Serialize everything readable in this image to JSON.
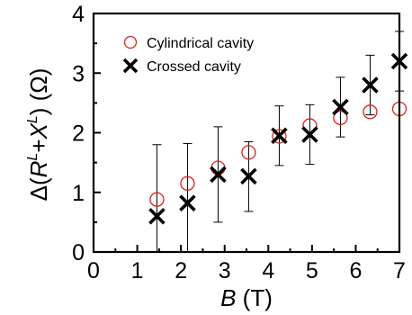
{
  "chart_data": {
    "type": "scatter",
    "xlabel_italic": "B",
    "xlabel_unit": " (T)",
    "ylabel_prefix": "Δ(",
    "ylabel_R": "R",
    "ylabel_sup1": "L",
    "ylabel_plus": "+",
    "ylabel_X": "X",
    "ylabel_sup2": "L",
    "ylabel_suffix": ") (Ω)",
    "xlim": [
      0,
      7
    ],
    "ylim": [
      0,
      4
    ],
    "xticks": [
      "0",
      "1",
      "2",
      "3",
      "4",
      "5",
      "6",
      "7"
    ],
    "yticks": [
      "0",
      "1",
      "2",
      "3",
      "4"
    ],
    "legend_position": "top-left",
    "series": [
      {
        "name": "Cylindrical cavity",
        "marker": "open-circle",
        "color": "#e0201b",
        "points": [
          {
            "x": 1.45,
            "y": 0.88
          },
          {
            "x": 2.15,
            "y": 1.15
          },
          {
            "x": 2.85,
            "y": 1.41
          },
          {
            "x": 3.55,
            "y": 1.67
          },
          {
            "x": 4.25,
            "y": 1.94
          },
          {
            "x": 4.95,
            "y": 2.12
          },
          {
            "x": 5.65,
            "y": 2.25
          },
          {
            "x": 6.33,
            "y": 2.35
          },
          {
            "x": 7.0,
            "y": 2.4
          }
        ]
      },
      {
        "name": "Crossed cavity",
        "marker": "x",
        "color": "#000000",
        "points": [
          {
            "x": 1.45,
            "y": 0.6,
            "err_low": 0.0,
            "err_high": 1.8
          },
          {
            "x": 2.15,
            "y": 0.82,
            "err_low": 0.0,
            "err_high": 1.82
          },
          {
            "x": 2.85,
            "y": 1.3,
            "err_low": 0.5,
            "err_high": 2.1
          },
          {
            "x": 3.55,
            "y": 1.27,
            "err_low": 0.68,
            "err_high": 1.85
          },
          {
            "x": 4.25,
            "y": 1.95,
            "err_low": 1.45,
            "err_high": 2.45
          },
          {
            "x": 4.95,
            "y": 1.97,
            "err_low": 1.47,
            "err_high": 2.47
          },
          {
            "x": 5.65,
            "y": 2.43,
            "err_low": 1.93,
            "err_high": 2.93
          },
          {
            "x": 6.33,
            "y": 2.8,
            "err_low": 2.3,
            "err_high": 3.3
          },
          {
            "x": 7.0,
            "y": 3.2,
            "err_low": 2.7,
            "err_high": 3.7
          }
        ]
      }
    ]
  }
}
